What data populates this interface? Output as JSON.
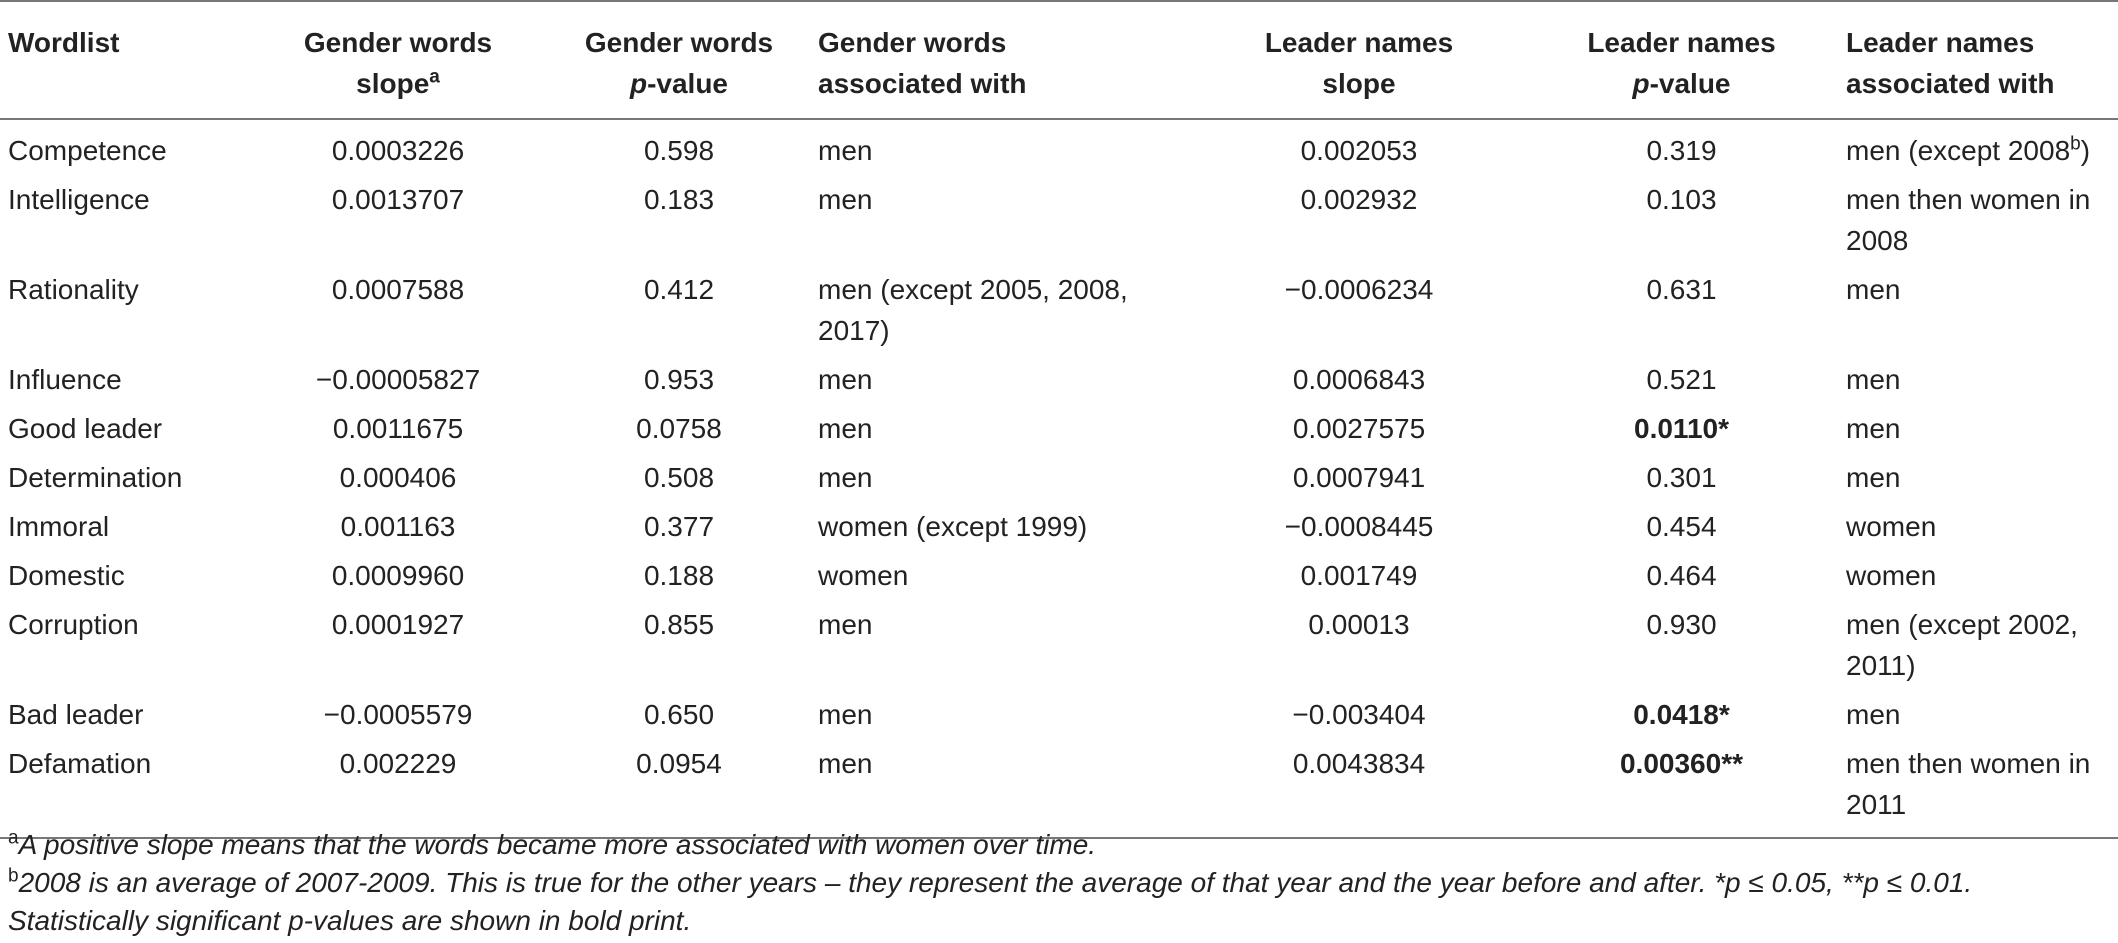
{
  "table": {
    "headers": [
      {
        "line1": "Wordlist",
        "line2": "",
        "italic": "",
        "rest": "",
        "sup": ""
      },
      {
        "line1": "Gender words",
        "line2": "slope",
        "italic": "",
        "rest": "",
        "sup": "a"
      },
      {
        "line1": "Gender words",
        "line2": "",
        "italic": "p",
        "rest": "-value",
        "sup": ""
      },
      {
        "line1": "Gender words",
        "line2": "associated with",
        "italic": "",
        "rest": "",
        "sup": ""
      },
      {
        "line1": "Leader names",
        "line2": "slope",
        "italic": "",
        "rest": "",
        "sup": ""
      },
      {
        "line1": "Leader names",
        "line2": "",
        "italic": "p",
        "rest": "-value",
        "sup": ""
      },
      {
        "line1": "Leader names",
        "line2": "associated with",
        "italic": "",
        "rest": "",
        "sup": ""
      }
    ],
    "rows": [
      {
        "wordlist": "Competence",
        "gw_slope": "0.0003226",
        "gw_p": "0.598",
        "gw_assoc": "men",
        "ln_slope": "0.002053",
        "ln_p": "0.319",
        "ln_assoc": "men (except 2008",
        "ln_assoc_sup": "b",
        "ln_assoc_tail": ")"
      },
      {
        "wordlist": "Intelligence",
        "gw_slope": "0.0013707",
        "gw_p": "0.183",
        "gw_assoc": "men",
        "ln_slope": "0.002932",
        "ln_p": "0.103",
        "ln_assoc": "men then women in 2008",
        "ln_assoc_sup": "",
        "ln_assoc_tail": ""
      },
      {
        "wordlist": "Rationality",
        "gw_slope": "0.0007588",
        "gw_p": "0.412",
        "gw_assoc": "men (except 2005, 2008, 2017)",
        "ln_slope": "−0.0006234",
        "ln_p": "0.631",
        "ln_assoc": "men",
        "ln_assoc_sup": "",
        "ln_assoc_tail": ""
      },
      {
        "wordlist": "Influence",
        "gw_slope": "−0.00005827",
        "gw_p": "0.953",
        "gw_assoc": "men",
        "ln_slope": "0.0006843",
        "ln_p": "0.521",
        "ln_assoc": "men",
        "ln_assoc_sup": "",
        "ln_assoc_tail": ""
      },
      {
        "wordlist": "Good leader",
        "gw_slope": "0.0011675",
        "gw_p": "0.0758",
        "gw_assoc": "men",
        "ln_slope": "0.0027575",
        "ln_p": "0.0110*",
        "ln_p_bold": true,
        "ln_assoc": "men",
        "ln_assoc_sup": "",
        "ln_assoc_tail": ""
      },
      {
        "wordlist": "Determination",
        "gw_slope": "0.000406",
        "gw_p": "0.508",
        "gw_assoc": "men",
        "ln_slope": "0.0007941",
        "ln_p": "0.301",
        "ln_assoc": "men",
        "ln_assoc_sup": "",
        "ln_assoc_tail": ""
      },
      {
        "wordlist": "Immoral",
        "gw_slope": "0.001163",
        "gw_p": "0.377",
        "gw_assoc": "women (except 1999)",
        "ln_slope": "−0.0008445",
        "ln_p": "0.454",
        "ln_assoc": "women",
        "ln_assoc_sup": "",
        "ln_assoc_tail": ""
      },
      {
        "wordlist": "Domestic",
        "gw_slope": "0.0009960",
        "gw_p": "0.188",
        "gw_assoc": "women",
        "ln_slope": "0.001749",
        "ln_p": "0.464",
        "ln_assoc": "women",
        "ln_assoc_sup": "",
        "ln_assoc_tail": ""
      },
      {
        "wordlist": "Corruption",
        "gw_slope": "0.0001927",
        "gw_p": "0.855",
        "gw_assoc": "men",
        "ln_slope": "0.00013",
        "ln_p": "0.930",
        "ln_assoc": "men (except 2002, 2011)",
        "ln_assoc_sup": "",
        "ln_assoc_tail": ""
      },
      {
        "wordlist": "Bad leader",
        "gw_slope": "−0.0005579",
        "gw_p": "0.650",
        "gw_assoc": "men",
        "ln_slope": "−0.003404",
        "ln_p": "0.0418*",
        "ln_p_bold": true,
        "ln_assoc": "men",
        "ln_assoc_sup": "",
        "ln_assoc_tail": ""
      },
      {
        "wordlist": "Defamation",
        "gw_slope": "0.002229",
        "gw_p": "0.0954",
        "gw_assoc": "men",
        "ln_slope": "0.0043834",
        "ln_p": "0.00360**",
        "ln_p_bold": true,
        "ln_assoc": "men then women in 2011",
        "ln_assoc_sup": "",
        "ln_assoc_tail": ""
      }
    ]
  },
  "footnotes": [
    {
      "marker": "a",
      "text": "A positive slope means that the words became more associated with women over time."
    },
    {
      "marker": "b",
      "text": "2008 is an average of 2007-2009. This is true for the other years – they represent the average of that year and the year before and after. *p ≤ 0.05, **p ≤ 0.01. Statistically significant p-values are shown in bold print."
    }
  ]
}
